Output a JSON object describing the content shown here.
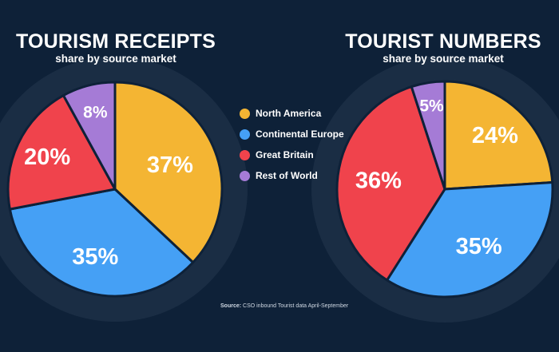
{
  "source": {
    "label": "Source:",
    "text": "CSO inbound Tourist data April-September"
  },
  "chart_data": [
    {
      "type": "pie",
      "title": "TOURISM RECEIPTS",
      "subtitle": "share by source market",
      "categories": [
        "North America",
        "Continental Europe",
        "Great Britain",
        "Rest of World"
      ],
      "values": [
        37,
        35,
        20,
        8
      ],
      "value_labels": [
        "37%",
        "35%",
        "20%",
        "8%"
      ],
      "colors": [
        "#f4b533",
        "#45a0f5",
        "#f0434c",
        "#a57bd6"
      ]
    },
    {
      "type": "pie",
      "title": "TOURIST NUMBERS",
      "subtitle": "share by source market",
      "categories": [
        "North America",
        "Continental Europe",
        "Great Britain",
        "Rest of World"
      ],
      "values": [
        24,
        35,
        36,
        5
      ],
      "value_labels": [
        "24%",
        "35%",
        "36%",
        "5%"
      ],
      "colors": [
        "#f4b533",
        "#45a0f5",
        "#f0434c",
        "#a57bd6"
      ]
    }
  ],
  "legend": {
    "items": [
      {
        "label": "North America",
        "color": "#f4b533"
      },
      {
        "label": "Continental Europe",
        "color": "#45a0f5"
      },
      {
        "label": "Great Britain",
        "color": "#f0434c"
      },
      {
        "label": "Rest of World",
        "color": "#a57bd6"
      }
    ]
  }
}
